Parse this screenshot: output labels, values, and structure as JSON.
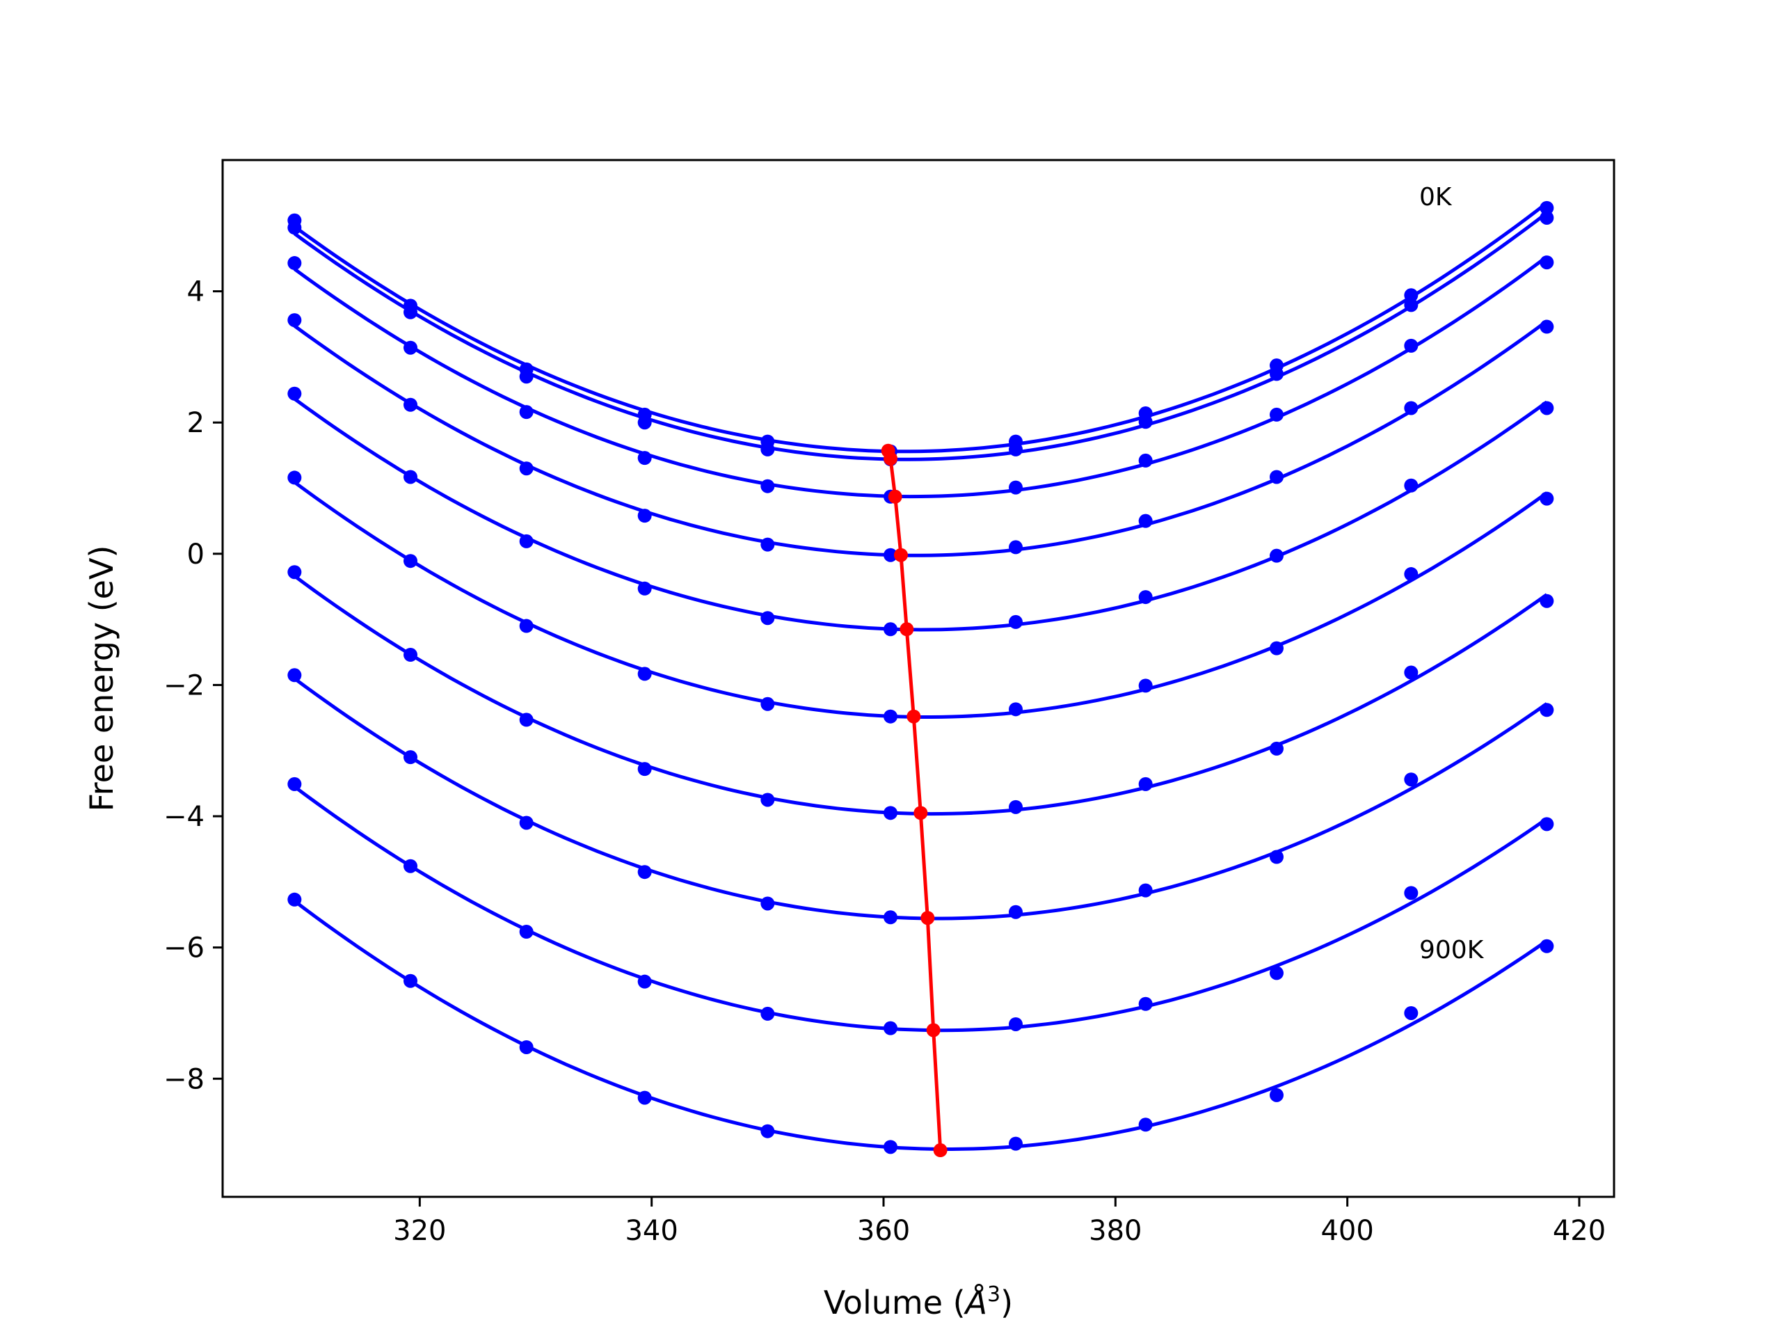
{
  "chart_data": {
    "type": "line",
    "title": "",
    "xlabel": "Volume (Å³)",
    "xlabel_main": "Volume (",
    "xlabel_unit": "Å",
    "xlabel_sup": "3",
    "xlabel_close": ")",
    "ylabel": "Free energy (eV)",
    "xlim": [
      303.0,
      423.0
    ],
    "ylim": [
      -9.8,
      6.0
    ],
    "xticks": [
      320,
      340,
      360,
      380,
      400,
      420
    ],
    "yticks": [
      -8,
      -6,
      -4,
      -2,
      0,
      2,
      4
    ],
    "xtick_labels": [
      "320",
      "340",
      "360",
      "380",
      "400",
      "420"
    ],
    "ytick_labels": [
      "−8",
      "−6",
      "−4",
      "−2",
      "0",
      "2",
      "4"
    ],
    "grid": false,
    "colors": {
      "curves": "#0000ff",
      "minimum_line": "#ff0000",
      "axes": "#000000"
    },
    "x": [
      309.2,
      319.2,
      329.2,
      339.4,
      350.0,
      360.6,
      371.4,
      382.6,
      393.9,
      405.5,
      417.2
    ],
    "series": [
      {
        "temperature": "0K",
        "values": [
          5.08,
          3.78,
          2.81,
          2.12,
          1.71,
          1.56,
          1.71,
          2.14,
          2.87,
          3.94,
          5.27
        ],
        "min_volume": 360.4,
        "min_energy": 1.57
      },
      {
        "values": [
          4.97,
          3.68,
          2.7,
          2.0,
          1.59,
          1.44,
          1.59,
          2.01,
          2.74,
          3.79,
          5.12
        ],
        "min_volume": 360.6,
        "min_energy": 1.45
      },
      {
        "values": [
          4.43,
          3.14,
          2.16,
          1.46,
          1.03,
          0.87,
          1.01,
          1.42,
          2.12,
          3.17,
          4.44
        ],
        "min_volume": 361.0,
        "min_energy": 0.87
      },
      {
        "values": [
          3.56,
          2.27,
          1.3,
          0.58,
          0.14,
          -0.02,
          0.1,
          0.5,
          1.17,
          2.22,
          3.46
        ],
        "min_volume": 361.5,
        "min_energy": -0.02
      },
      {
        "values": [
          2.44,
          1.17,
          0.19,
          -0.53,
          -0.98,
          -1.15,
          -1.04,
          -0.66,
          -0.03,
          1.04,
          2.22
        ],
        "min_volume": 362.0,
        "min_energy": -1.15
      },
      {
        "values": [
          1.16,
          -0.11,
          -1.1,
          -1.83,
          -2.29,
          -2.48,
          -2.37,
          -2.01,
          -1.44,
          -0.31,
          0.84
        ],
        "min_volume": 362.6,
        "min_energy": -2.48
      },
      {
        "values": [
          -0.28,
          -1.54,
          -2.53,
          -3.28,
          -3.75,
          -3.95,
          -3.86,
          -3.51,
          -2.97,
          -1.81,
          -0.72
        ],
        "min_volume": 363.2,
        "min_energy": -3.95
      },
      {
        "values": [
          -1.85,
          -3.1,
          -4.1,
          -4.85,
          -5.33,
          -5.54,
          -5.46,
          -5.13,
          -4.62,
          -3.44,
          -2.38
        ],
        "min_volume": 363.8,
        "min_energy": -5.55
      },
      {
        "values": [
          -3.51,
          -4.76,
          -5.76,
          -6.52,
          -7.01,
          -7.23,
          -7.17,
          -6.86,
          -6.39,
          -5.17,
          -4.12
        ],
        "min_volume": 364.3,
        "min_energy": -7.26
      },
      {
        "temperature": "900K",
        "values": [
          -5.27,
          -6.51,
          -7.52,
          -8.29,
          -8.8,
          -9.04,
          -8.99,
          -8.7,
          -8.25,
          -7.0,
          -5.98
        ],
        "min_volume": 364.9,
        "min_energy": -9.09
      }
    ],
    "annotations": [
      {
        "text": "0K",
        "x": 405.5,
        "y": 5.45
      },
      {
        "text": "900K",
        "x": 405.5,
        "y": -6.0
      }
    ]
  }
}
